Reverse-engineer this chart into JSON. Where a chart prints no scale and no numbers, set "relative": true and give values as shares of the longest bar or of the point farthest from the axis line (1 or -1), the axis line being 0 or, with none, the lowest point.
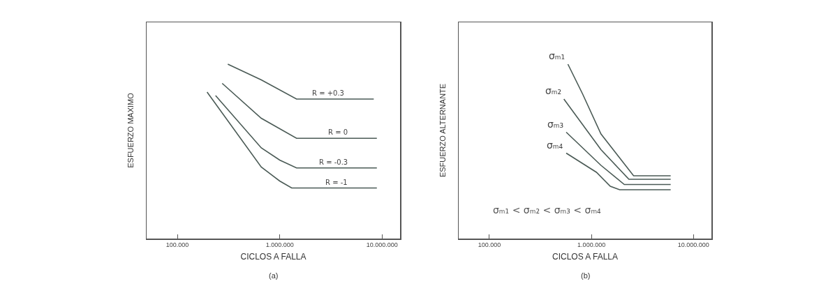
{
  "chart_data": [
    {
      "type": "line",
      "xlabel": "CICLOS A FALLA",
      "ylabel": "ESFUERZO MAXIMO",
      "annotations": [
        "(a)"
      ],
      "relative": true,
      "log": "x",
      "xlim": [
        50000,
        15000000
      ],
      "xticks": [
        {
          "value": 100000,
          "label": "100.000"
        },
        {
          "value": 1000000,
          "label": "1.000.000"
        },
        {
          "value": 10000000,
          "label": "10.000.000"
        }
      ],
      "grid": false,
      "legend": false,
      "marker": "none",
      "line_style": "solid",
      "series": [
        {
          "name": "R = +0.3",
          "color": "#4a5a55",
          "x": [
            311000,
            660000,
            1460000,
            8300000
          ],
          "values": [
            1.0,
            0.91,
            0.8,
            0.8
          ]
        },
        {
          "name": "R = 0",
          "color": "#4a5a55",
          "x": [
            274000,
            660000,
            1460000,
            8900000
          ],
          "values": [
            0.89,
            0.69,
            0.575,
            0.575
          ]
        },
        {
          "name": "R = -0.3",
          "color": "#4a5a55",
          "x": [
            236000,
            660000,
            1000000,
            1460000,
            8900000
          ],
          "values": [
            0.82,
            0.52,
            0.45,
            0.405,
            0.405
          ]
        },
        {
          "name": "R = -1",
          "color": "#4a5a55",
          "x": [
            195000,
            660000,
            1000000,
            1310000,
            8900000
          ],
          "values": [
            0.84,
            0.41,
            0.33,
            0.29,
            0.29
          ]
        }
      ]
    },
    {
      "type": "line",
      "xlabel": "CICLOS A FALLA",
      "ylabel": "ESFUERZO ALTERNANTE",
      "annotations": [
        "σₘ₁ < σₘ₂ < σₘ₃ < σₘ₄",
        "(b)"
      ],
      "relative": true,
      "log": "x",
      "xlim": [
        50000,
        15000000
      ],
      "xticks": [
        {
          "value": 100000,
          "label": "100.000"
        },
        {
          "value": 1000000,
          "label": "1.000.000"
        },
        {
          "value": 10000000,
          "label": "10.000.000"
        }
      ],
      "grid": false,
      "legend": false,
      "marker": "none",
      "line_style": "solid",
      "series": [
        {
          "name": "σₘ₁",
          "color": "#4a5a55",
          "x": [
            588000,
            818000,
            1240000,
            2590000,
            5980000
          ],
          "values": [
            1.0,
            0.83,
            0.6,
            0.36,
            0.36
          ]
        },
        {
          "name": "σₘ₂",
          "color": "#4a5a55",
          "x": [
            537000,
            1240000,
            2330000,
            5980000
          ],
          "values": [
            0.8,
            0.51,
            0.34,
            0.34
          ]
        },
        {
          "name": "σₘ₃",
          "color": "#4a5a55",
          "x": [
            566000,
            1240000,
            2100000,
            5980000
          ],
          "values": [
            0.61,
            0.42,
            0.31,
            0.31
          ]
        },
        {
          "name": "σₘ₄",
          "color": "#4a5a55",
          "x": [
            566000,
            1120000,
            1530000,
            1890000,
            5980000
          ],
          "values": [
            0.49,
            0.38,
            0.3,
            0.28,
            0.28
          ]
        }
      ]
    }
  ]
}
